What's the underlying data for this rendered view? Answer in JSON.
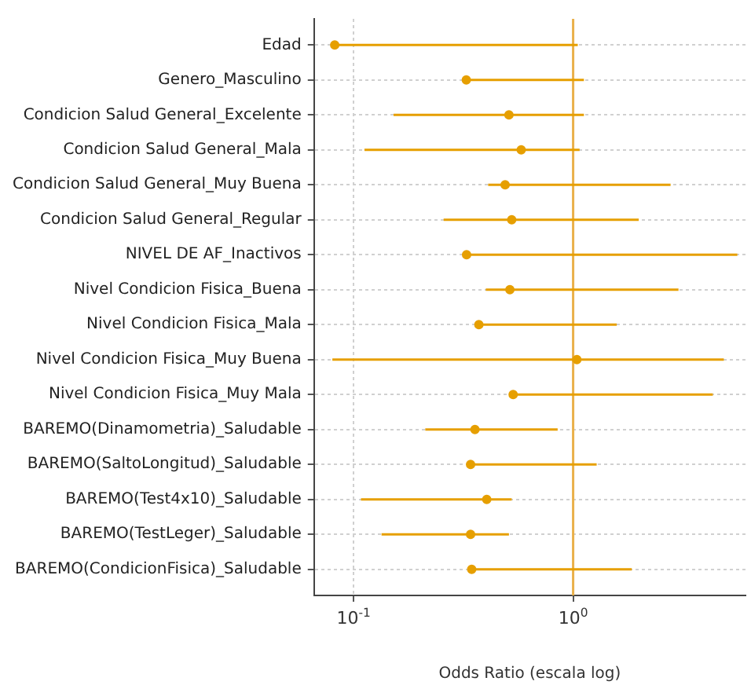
{
  "chart_data": {
    "type": "scatter",
    "orientation": "horizontal",
    "xlabel": "Odds Ratio (escala log)",
    "categories": [
      "Edad",
      "Genero_Masculino",
      "Condicion Salud General_Excelente",
      "Condicion Salud General_Mala",
      "Condicion Salud General_Muy Buena",
      "Condicion Salud General_Regular",
      "NIVEL DE AF_Inactivos",
      "Nivel Condicion Fisica_Buena",
      "Nivel Condicion Fisica_Mala",
      "Nivel Condicion Fisica_Muy Buena",
      "Nivel Condicion Fisica_Muy Mala",
      "BAREMO(Dinamometria)_Saludable",
      "BAREMO(SaltoLongitud)_Saludable",
      "BAREMO(Test4x10)_Saludable",
      "BAREMO(TestLeger)_Saludable",
      "BAREMO(CondicionFisica)_Saludable"
    ],
    "values": [
      0.082,
      0.326,
      0.51,
      0.58,
      0.49,
      0.525,
      0.327,
      0.515,
      0.372,
      1.04,
      0.533,
      0.357,
      0.341,
      0.404,
      0.341,
      0.345
    ],
    "errors": [
      [
        0.082,
        1.05
      ],
      [
        0.326,
        1.12
      ],
      [
        0.152,
        1.12
      ],
      [
        0.112,
        1.07
      ],
      [
        0.41,
        2.78
      ],
      [
        0.257,
        1.99
      ],
      [
        0.327,
        5.6
      ],
      [
        0.4,
        3.02
      ],
      [
        0.372,
        1.58
      ],
      [
        0.08,
        4.86
      ],
      [
        0.533,
        4.33
      ],
      [
        0.212,
        0.85
      ],
      [
        0.341,
        1.28
      ],
      [
        0.108,
        0.525
      ],
      [
        0.134,
        0.51
      ],
      [
        0.345,
        1.85
      ]
    ],
    "color": "#e69f00",
    "marker": "circle",
    "log": "x",
    "xlim": [
      0.066,
      6.1
    ],
    "xticks": [
      {
        "value": 0.1,
        "label": "10$^{-1}$"
      },
      {
        "value": 1,
        "label": "10$^{0}$"
      }
    ],
    "grid": true,
    "ref_lines": [
      {
        "axis": "x",
        "value": 1,
        "color": "#eab04a"
      }
    ]
  }
}
